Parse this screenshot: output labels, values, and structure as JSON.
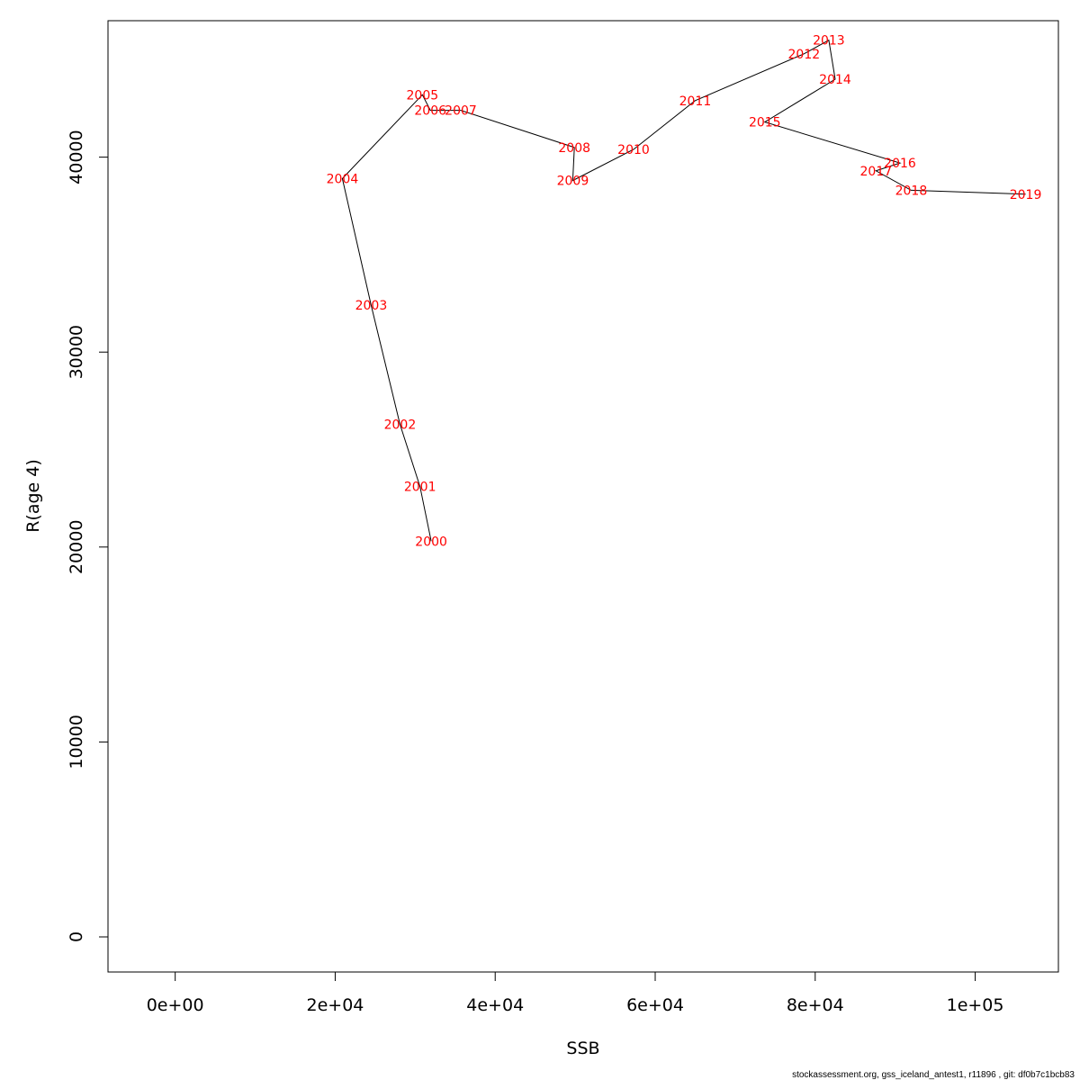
{
  "chart_data": {
    "type": "line",
    "xlabel": "SSB",
    "ylabel": "R(age 4)",
    "xlim": [
      -8400,
      110400
    ],
    "ylim": [
      -1800,
      47000
    ],
    "x_ticks": [
      0,
      20000,
      40000,
      60000,
      80000,
      100000
    ],
    "x_tick_labels": [
      "0e+00",
      "2e+04",
      "4e+04",
      "6e+04",
      "8e+04",
      "1e+05"
    ],
    "y_ticks": [
      0,
      10000,
      20000,
      30000,
      40000
    ],
    "y_tick_labels": [
      "0",
      "10000",
      "20000",
      "30000",
      "40000"
    ],
    "grid": false,
    "line_color": "#000000",
    "label_color": "#ff0000",
    "points": [
      {
        "label": "2000",
        "x": 32000,
        "y": 20300
      },
      {
        "label": "2001",
        "x": 30600,
        "y": 23100
      },
      {
        "label": "2002",
        "x": 28100,
        "y": 26300
      },
      {
        "label": "2003",
        "x": 24500,
        "y": 32400
      },
      {
        "label": "2004",
        "x": 20900,
        "y": 38900
      },
      {
        "label": "2005",
        "x": 30900,
        "y": 43200
      },
      {
        "label": "2006",
        "x": 31900,
        "y": 42400
      },
      {
        "label": "2007",
        "x": 35700,
        "y": 42400
      },
      {
        "label": "2008",
        "x": 49900,
        "y": 40500
      },
      {
        "label": "2009",
        "x": 49700,
        "y": 38800
      },
      {
        "label": "2010",
        "x": 57300,
        "y": 40400
      },
      {
        "label": "2011",
        "x": 65000,
        "y": 42900
      },
      {
        "label": "2012",
        "x": 78600,
        "y": 45300
      },
      {
        "label": "2013",
        "x": 81700,
        "y": 46000
      },
      {
        "label": "2014",
        "x": 82500,
        "y": 44000
      },
      {
        "label": "2015",
        "x": 73700,
        "y": 41800
      },
      {
        "label": "2016",
        "x": 90600,
        "y": 39700
      },
      {
        "label": "2017",
        "x": 87600,
        "y": 39300
      },
      {
        "label": "2018",
        "x": 92000,
        "y": 38300
      },
      {
        "label": "2019",
        "x": 106300,
        "y": 38100
      }
    ]
  },
  "footer_text": "stockassessment.org, gss_iceland_antest1, r11896 , git: df0b7c1bcb83"
}
